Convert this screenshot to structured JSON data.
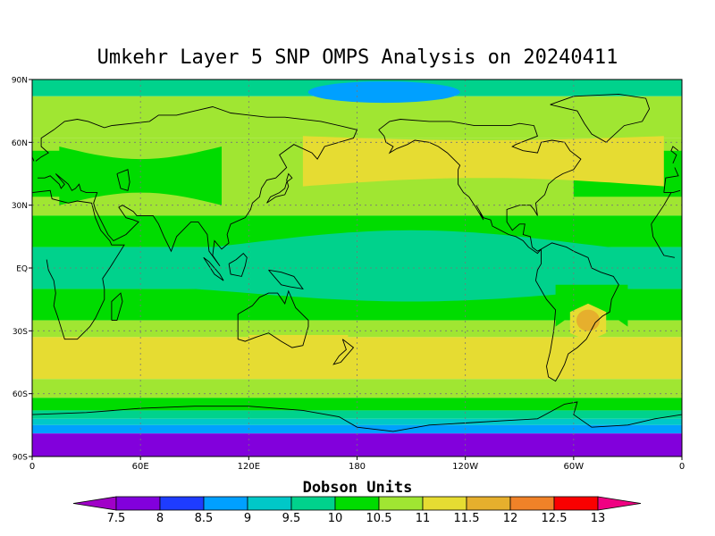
{
  "title": "Umkehr Layer 5 SNP OMPS Analysis on 20240411",
  "units_label": "Dobson Units",
  "chart_data": {
    "type": "heatmap",
    "title": "Umkehr Layer 5 SNP OMPS Analysis on 20240411",
    "projection": "cylindrical equidistant, 0 to 360 longitude",
    "xlim": [
      0,
      360
    ],
    "ylim": [
      -90,
      90
    ],
    "x_tick_labels": [
      "0",
      "60E",
      "120E",
      "180",
      "120W",
      "60W",
      "0"
    ],
    "y_tick_labels": [
      "90N",
      "60N",
      "30N",
      "EQ",
      "30S",
      "60S",
      "90S"
    ],
    "grid": true,
    "colorbar": {
      "label": "Dobson Units",
      "levels": [
        7.5,
        8,
        8.5,
        9,
        9.5,
        10,
        10.5,
        11,
        11.5,
        12,
        12.5,
        13
      ],
      "level_labels": [
        "7.5",
        "8",
        "8.5",
        "9",
        "9.5",
        "10",
        "10.5",
        "11",
        "11.5",
        "12",
        "12.5",
        "13"
      ],
      "colors": [
        "#a000c8",
        "#8200dc",
        "#1e3cff",
        "#00a0ff",
        "#00c8c8",
        "#00d28c",
        "#00dc00",
        "#a0e632",
        "#e6dc32",
        "#e6af2d",
        "#f08228",
        "#fa0000",
        "#f00082"
      ]
    },
    "zonal_bands_DU": [
      {
        "lat_from": 90,
        "lat_to": 82,
        "value": 9.5
      },
      {
        "lat_from": 82,
        "lat_to": 62,
        "value": 10.5
      },
      {
        "lat_from": 62,
        "lat_to": 45,
        "value": 10.5
      },
      {
        "lat_from": 45,
        "lat_to": 25,
        "value": 10.5
      },
      {
        "lat_from": 25,
        "lat_to": 10,
        "value": 10
      },
      {
        "lat_from": 10,
        "lat_to": -10,
        "value": 9.5
      },
      {
        "lat_from": -10,
        "lat_to": -25,
        "value": 10
      },
      {
        "lat_from": -25,
        "lat_to": -33,
        "value": 10.5
      },
      {
        "lat_from": -33,
        "lat_to": -53,
        "value": 11
      },
      {
        "lat_from": -53,
        "lat_to": -62,
        "value": 10.5
      },
      {
        "lat_from": -62,
        "lat_to": -68,
        "value": 10
      },
      {
        "lat_from": -68,
        "lat_to": -72,
        "value": 9.5
      },
      {
        "lat_from": -72,
        "lat_to": -75,
        "value": 9
      },
      {
        "lat_from": -75,
        "lat_to": -79,
        "value": 8.5
      },
      {
        "lat_from": -79,
        "lat_to": -90,
        "value": 7.5
      }
    ],
    "features": [
      {
        "name": "arctic minimum",
        "lon": 195,
        "lat": 84,
        "value": 8.5
      },
      {
        "name": "north pacific maximum",
        "lon": 250,
        "lat": 55,
        "value": 11
      },
      {
        "name": "south america maximum",
        "lon": 308,
        "lat": -25,
        "value": 11.5
      }
    ]
  }
}
